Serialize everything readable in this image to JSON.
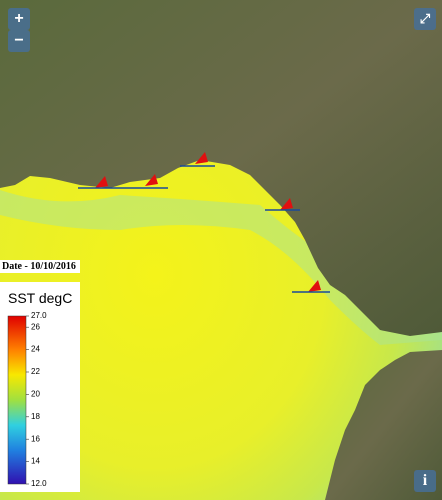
{
  "controls": {
    "zoom_in": "+",
    "zoom_out": "−",
    "info": "i"
  },
  "date_label": "Date - 10/10/2016",
  "legend": {
    "title": "SST degC",
    "range": [
      12,
      27
    ],
    "ticks": [
      {
        "value": 27,
        "label": "27.0"
      },
      26,
      24,
      22,
      20,
      18,
      16,
      14,
      {
        "value": 12,
        "label": "12.0"
      }
    ]
  }
}
